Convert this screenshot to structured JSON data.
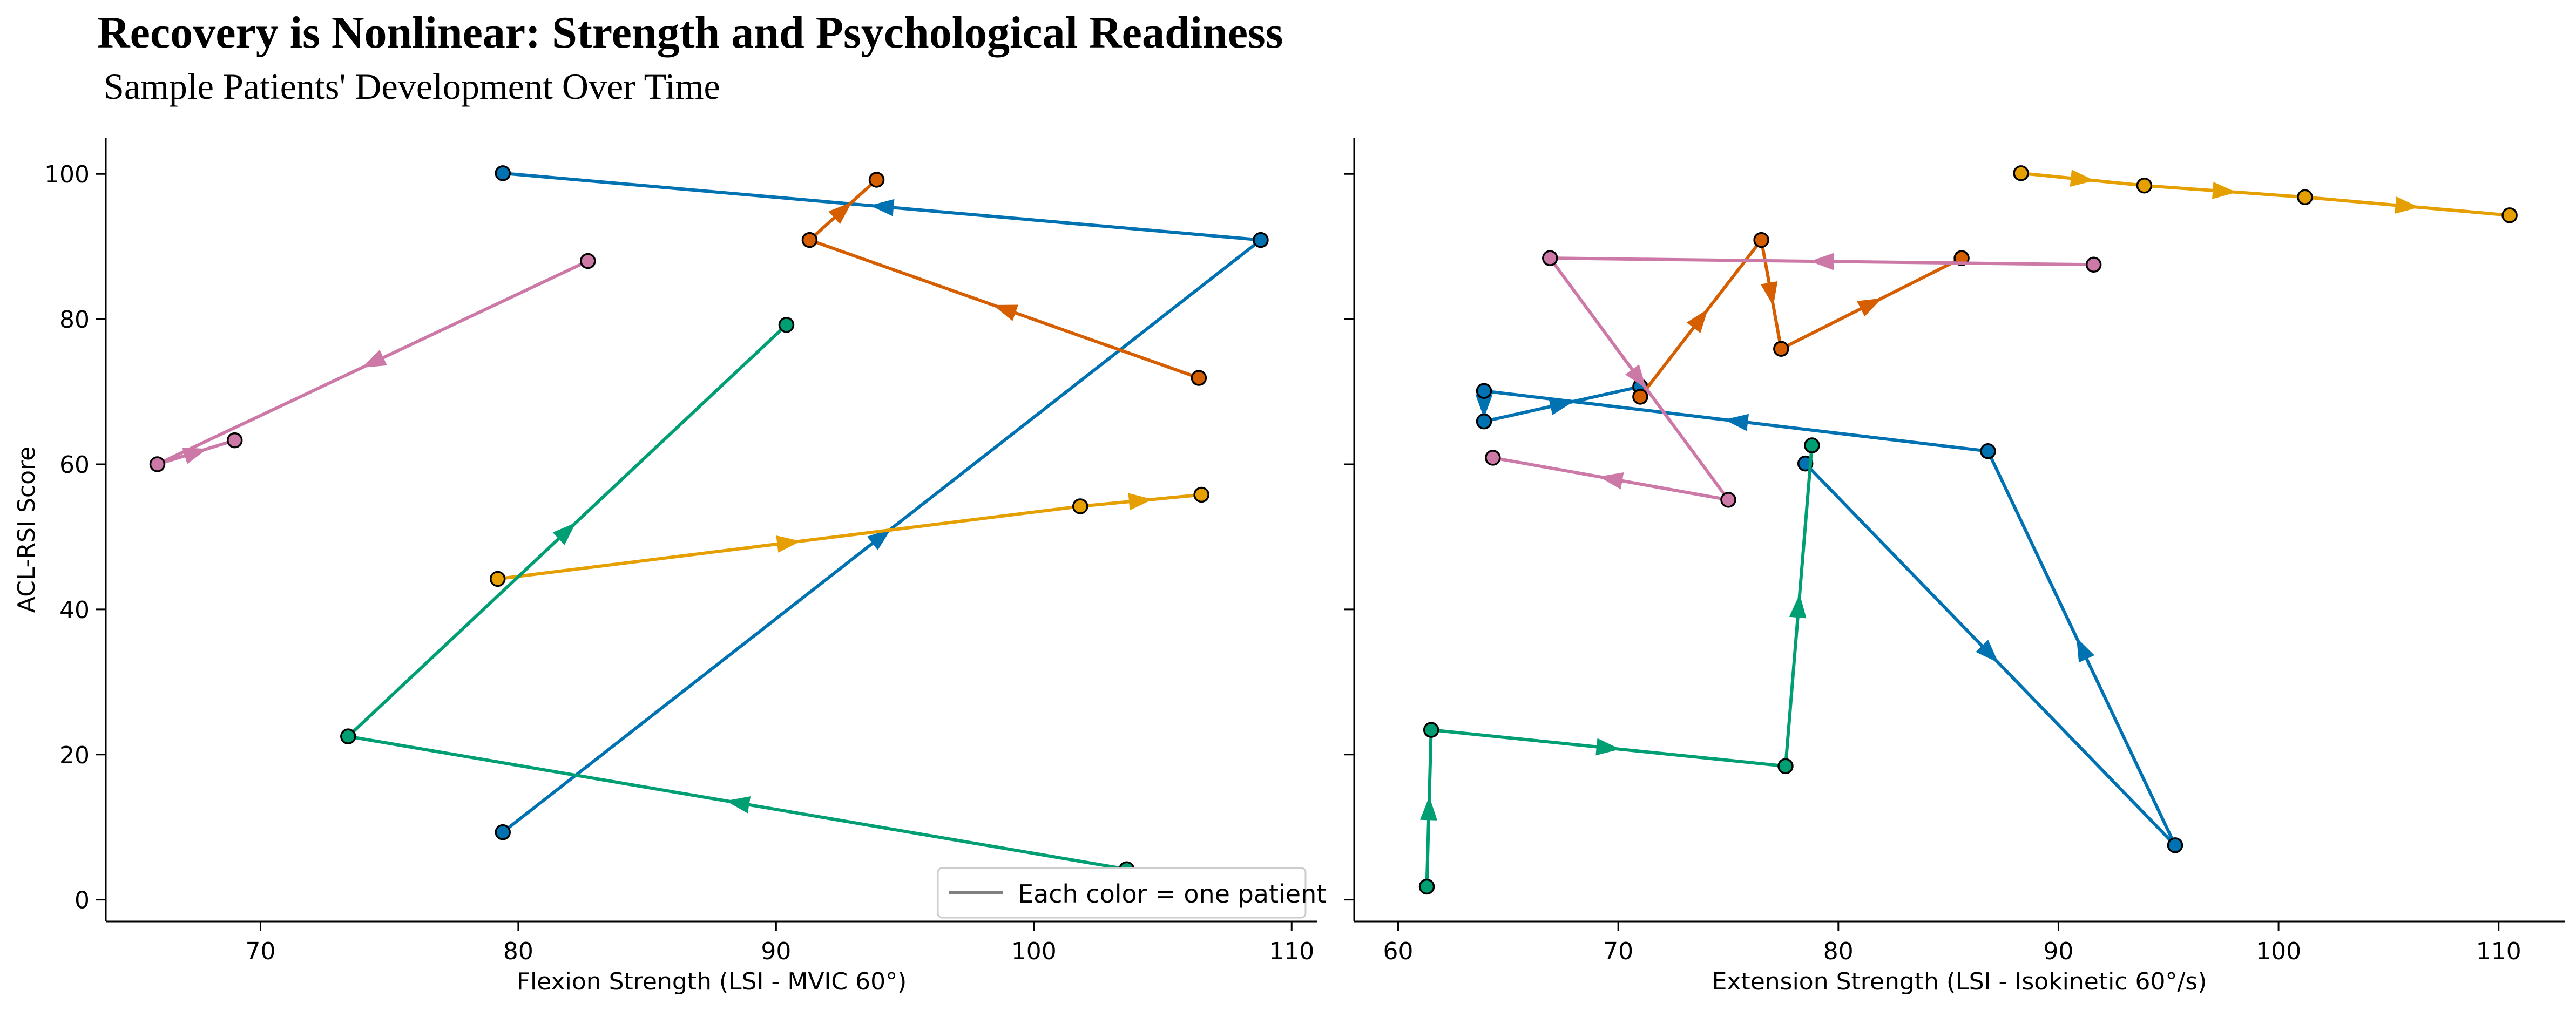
{
  "title": "Recovery is Nonlinear: Strength and Psychological Readiness",
  "subtitle": "Sample Patients' Development Over Time",
  "colors": {
    "blue": "#0072b2",
    "orange": "#e69f00",
    "green": "#009e73",
    "vermillion": "#d55e00",
    "pink": "#cc79a7",
    "legend_line": "#808080"
  },
  "legend": {
    "label": "Each color = one patient",
    "placement": "lower-right"
  },
  "chart_data": [
    {
      "type": "line",
      "xlabel": "Flexion Strength (LSI - MVIC 60°)",
      "ylabel": "ACL-RSI Score",
      "xlim": [
        64,
        111
      ],
      "ylim": [
        -3,
        105
      ],
      "xticks": [
        70,
        80,
        90,
        100,
        110
      ],
      "yticks": [
        0,
        20,
        40,
        60,
        80,
        100
      ],
      "series": [
        {
          "color": "#0072b2",
          "points": [
            [
              79.4,
              9.3
            ],
            [
              108.8,
              90.9
            ],
            [
              79.4,
              100.1
            ]
          ]
        },
        {
          "color": "#e69f00",
          "points": [
            [
              79.2,
              44.2
            ],
            [
              101.8,
              54.2
            ],
            [
              106.5,
              55.8
            ]
          ]
        },
        {
          "color": "#009e73",
          "points": [
            [
              103.6,
              4.2
            ],
            [
              73.4,
              22.5
            ],
            [
              90.4,
              79.2
            ]
          ]
        },
        {
          "color": "#d55e00",
          "points": [
            [
              106.4,
              71.9
            ],
            [
              91.3,
              90.9
            ],
            [
              93.9,
              99.2
            ]
          ]
        },
        {
          "color": "#cc79a7",
          "points": [
            [
              82.7,
              88.0
            ],
            [
              66.0,
              60.0
            ],
            [
              69.0,
              63.3
            ]
          ]
        }
      ]
    },
    {
      "type": "line",
      "xlabel": "Extension Strength (LSI - Isokinetic 60°/s)",
      "ylabel": "",
      "xlim": [
        58,
        113
      ],
      "ylim": [
        -3,
        105
      ],
      "xticks": [
        60,
        70,
        80,
        90,
        100,
        110
      ],
      "yticks": [
        0,
        20,
        40,
        60,
        80,
        100
      ],
      "series": [
        {
          "color": "#0072b2",
          "points": [
            [
              78.5,
              60.1
            ],
            [
              95.3,
              7.5
            ],
            [
              86.8,
              61.8
            ],
            [
              63.9,
              70.1
            ],
            [
              63.9,
              65.9
            ],
            [
              71.0,
              70.7
            ]
          ]
        },
        {
          "color": "#e69f00",
          "points": [
            [
              88.3,
              100.1
            ],
            [
              93.9,
              98.4
            ],
            [
              101.2,
              96.8
            ],
            [
              110.5,
              94.3
            ]
          ]
        },
        {
          "color": "#009e73",
          "points": [
            [
              61.3,
              1.8
            ],
            [
              61.5,
              23.4
            ],
            [
              77.6,
              18.4
            ],
            [
              78.8,
              62.6
            ]
          ]
        },
        {
          "color": "#d55e00",
          "points": [
            [
              71.0,
              69.3
            ],
            [
              76.5,
              90.9
            ],
            [
              77.4,
              75.9
            ],
            [
              85.6,
              88.4
            ]
          ]
        },
        {
          "color": "#cc79a7",
          "points": [
            [
              91.6,
              87.5
            ],
            [
              66.9,
              88.4
            ],
            [
              75.0,
              55.1
            ],
            [
              64.3,
              60.9
            ]
          ]
        }
      ]
    }
  ]
}
